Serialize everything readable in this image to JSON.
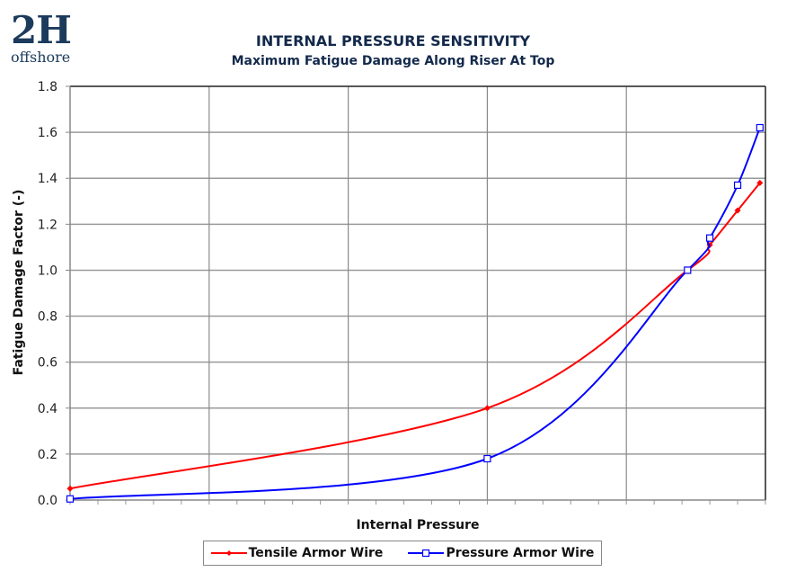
{
  "logo": {
    "brand": "2H",
    "sub": "offshore"
  },
  "chart_data": {
    "type": "line",
    "title": "INTERNAL PRESSURE SENSITIVITY",
    "subtitle": "Maximum Fatigue Damage Along Riser At Top",
    "xlabel": "Internal Pressure",
    "ylabel": "Fatigue Damage Factor (-)",
    "xlim": [
      0,
      5
    ],
    "ylim": [
      0,
      1.8
    ],
    "x_major_gridlines": [
      1,
      2,
      3,
      4
    ],
    "x_minor_per_major": 5,
    "yticks": [
      "0.0",
      "0.2",
      "0.4",
      "0.6",
      "0.8",
      "1.0",
      "1.2",
      "1.4",
      "1.6",
      "1.8"
    ],
    "ytick_values": [
      0,
      0.2,
      0.4,
      0.6,
      0.8,
      1.0,
      1.2,
      1.4,
      1.6,
      1.8
    ],
    "grid": true,
    "legend_position": "bottom",
    "series": [
      {
        "name": "Tensile Armor Wire",
        "color": "#ff0000",
        "marker": "diamond",
        "x": [
          0,
          3,
          4.44,
          4.6,
          4.8,
          4.96
        ],
        "y": [
          0.05,
          0.4,
          1.0,
          1.11,
          1.26,
          1.38
        ]
      },
      {
        "name": "Pressure Armor Wire",
        "color": "#0000ff",
        "marker": "square",
        "x": [
          0,
          3,
          4.44,
          4.6,
          4.8,
          4.96
        ],
        "y": [
          0.005,
          0.18,
          1.0,
          1.14,
          1.37,
          1.62
        ]
      }
    ]
  }
}
